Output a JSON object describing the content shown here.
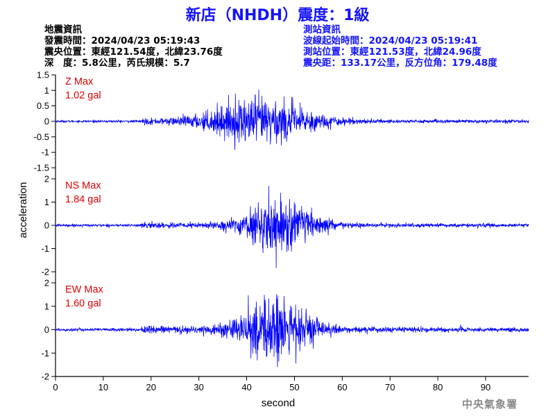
{
  "title": "新店（NHDH）震度：1級",
  "quake_info": {
    "heading": "地震資訊",
    "origin_time": "發震時間：2024/04/23 05:19:43",
    "epicenter": "震央位置：東經121.54度，北緯23.76度",
    "depth_mag": "深　度：5.8公里，芮氏規模：5.7"
  },
  "station_info": {
    "heading": "測站資訊",
    "wave_start": "波線起始時間：2024/04/23 05:19:41",
    "location": "測站位置：東經121.53度，北緯24.96度",
    "distance": "震央距：133.17公里，反方位角：179.48度"
  },
  "watermark": "中央氣象署",
  "colors": {
    "trace": "#0000ff",
    "max_label": "#e00000",
    "title": "#1414ff"
  },
  "chart_data": [
    {
      "type": "line",
      "component": "Z",
      "max_label": "Z Max",
      "max_value": "1.02 gal",
      "peak": 1.02,
      "ylim": [
        -1.5,
        1.5
      ],
      "yticks": [
        "1.5",
        "1",
        "0.5",
        "0",
        "-0.5",
        "-1",
        "-1.5"
      ],
      "ytick_values": [
        1.5,
        1,
        0.5,
        0,
        -0.5,
        -1,
        -1.5
      ]
    },
    {
      "type": "line",
      "component": "NS",
      "max_label": "NS Max",
      "max_value": "1.84 gal",
      "peak": 1.84,
      "ylim": [
        -2,
        2
      ],
      "yticks": [
        "2",
        "1",
        "0",
        "-1",
        "-2"
      ],
      "ytick_values": [
        2,
        1,
        0,
        -1,
        -2
      ]
    },
    {
      "type": "line",
      "component": "EW",
      "max_label": "EW Max",
      "max_value": "1.60 gal",
      "peak": 1.6,
      "ylim": [
        -2,
        2
      ],
      "yticks": [
        "2",
        "1",
        "0",
        "-1",
        "-2"
      ],
      "ytick_values": [
        2,
        1,
        0,
        -1,
        -2
      ]
    }
  ],
  "x_axis": {
    "label": "second",
    "xlim": [
      0,
      99
    ],
    "ticks": [
      "0",
      "10",
      "20",
      "30",
      "40",
      "50",
      "60",
      "70",
      "80",
      "90"
    ],
    "tick_values": [
      0,
      10,
      20,
      30,
      40,
      50,
      60,
      70,
      80,
      90
    ]
  },
  "y_axis": {
    "label": "acceleration"
  }
}
